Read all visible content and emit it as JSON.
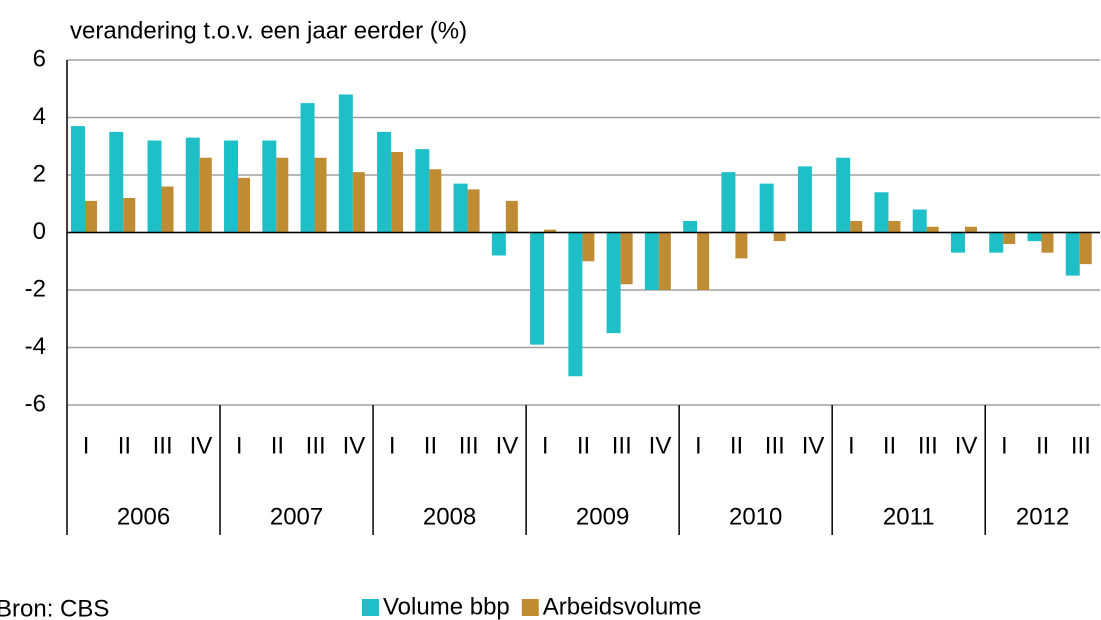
{
  "chart_data": {
    "type": "bar",
    "title": "verandering t.o.v. een jaar eerder (%)",
    "categories": [
      "I",
      "II",
      "III",
      "IV",
      "I",
      "II",
      "III",
      "IV",
      "I",
      "II",
      "III",
      "IV",
      "I",
      "II",
      "III",
      "IV",
      "I",
      "II",
      "III",
      "IV",
      "I",
      "II",
      "III",
      "IV",
      "I",
      "II",
      "III"
    ],
    "years": [
      "2006",
      "2007",
      "2008",
      "2009",
      "2010",
      "2011",
      "2012"
    ],
    "series": [
      {
        "name": "Volume bbp",
        "color": "#1fbfc8",
        "values": [
          3.7,
          3.5,
          3.2,
          3.3,
          3.2,
          3.2,
          4.5,
          4.8,
          3.5,
          2.9,
          1.7,
          -0.8,
          -3.9,
          -5.0,
          -3.5,
          -2.0,
          0.4,
          2.1,
          1.7,
          2.3,
          2.6,
          1.4,
          0.8,
          -0.7,
          -0.7,
          -0.3,
          -1.5
        ]
      },
      {
        "name": "Arbeidsvolume",
        "color": "#bf8c33",
        "values": [
          1.1,
          1.2,
          1.6,
          2.6,
          1.9,
          2.6,
          2.6,
          2.1,
          2.8,
          2.2,
          1.5,
          1.1,
          0.1,
          -1.0,
          -1.8,
          -2.0,
          -2.0,
          -0.9,
          -0.3,
          0.0,
          0.4,
          0.4,
          0.2,
          0.2,
          -0.4,
          -0.7,
          -1.1
        ]
      }
    ],
    "ylim": [
      -6,
      6
    ],
    "yticks": [
      -6,
      -4,
      -2,
      0,
      2,
      4,
      6
    ],
    "grid": true,
    "source": "Bron: CBS"
  }
}
